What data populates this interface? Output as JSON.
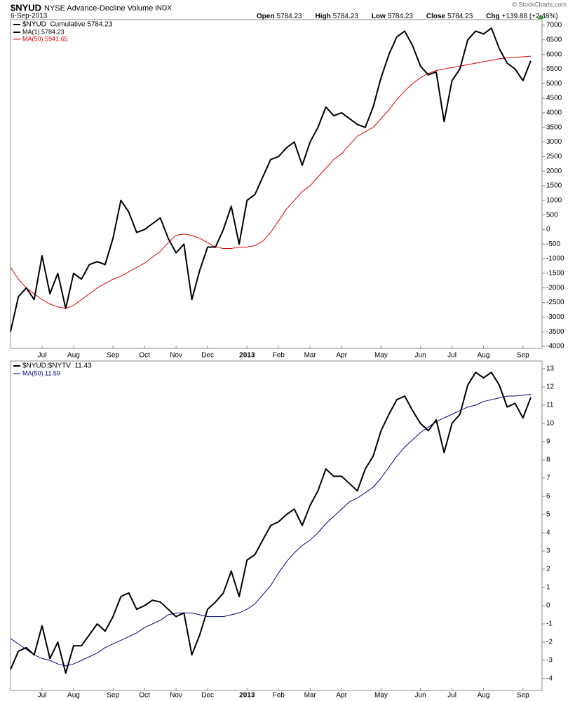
{
  "header": {
    "symbol": "$NYUD",
    "name": "NYSE Advance-Decline Volume",
    "exchange": "INDX",
    "date": "6-Sep-2013",
    "quote": [
      {
        "label": "Open",
        "value": "5784.23"
      },
      {
        "label": "High",
        "value": "5784.23"
      },
      {
        "label": "Low",
        "value": "5784.23"
      },
      {
        "label": "Close",
        "value": "5784.23"
      },
      {
        "label": "Chg",
        "value": "+139.88 (+2.48%)"
      }
    ],
    "copyright": "© StockCharts.com"
  },
  "chart_data": [
    {
      "type": "line",
      "legend_title": "$NYUD  Cumulative 5784.23",
      "categories": [
        null,
        null,
        null,
        null,
        "Jul",
        null,
        null,
        null,
        "Aug",
        null,
        null,
        null,
        null,
        "Sep",
        null,
        null,
        null,
        "Oct",
        null,
        null,
        null,
        "Nov",
        null,
        null,
        null,
        "Dec",
        null,
        null,
        null,
        null,
        "2013",
        null,
        null,
        null,
        "Feb",
        null,
        null,
        null,
        "Mar",
        null,
        null,
        null,
        "Apr",
        null,
        null,
        null,
        null,
        "May",
        null,
        null,
        null,
        null,
        "Jun",
        null,
        null,
        null,
        "Jul",
        null,
        null,
        null,
        "Aug",
        null,
        null,
        null,
        null,
        "Sep",
        null
      ],
      "series": [
        {
          "name": "MA(1) 5784.23",
          "color": "#000000",
          "values": [
            -3500,
            -2300,
            -2000,
            -2400,
            -900,
            -2200,
            -1500,
            -2700,
            -1500,
            -1700,
            -1200,
            -1100,
            -1200,
            -300,
            1000,
            600,
            -100,
            0,
            200,
            400,
            -300,
            -800,
            -500,
            -2400,
            -1400,
            -600,
            -600,
            0,
            800,
            -500,
            1000,
            1200,
            1800,
            2400,
            2500,
            2800,
            3000,
            2200,
            3000,
            3500,
            4200,
            3900,
            4000,
            3800,
            3600,
            3500,
            4200,
            5200,
            6000,
            6600,
            6800,
            6300,
            5600,
            5300,
            5400,
            3700,
            5100,
            5500,
            6500,
            6800,
            6700,
            6900,
            6200,
            5700,
            5500,
            5100,
            5784.23
          ]
        },
        {
          "name": "MA(50) 5941.65",
          "color": "#e00000",
          "values": [
            -1300,
            -1700,
            -2000,
            -2200,
            -2400,
            -2550,
            -2650,
            -2700,
            -2600,
            -2400,
            -2200,
            -2000,
            -1850,
            -1700,
            -1600,
            -1450,
            -1300,
            -1150,
            -950,
            -750,
            -450,
            -200,
            -150,
            -200,
            -300,
            -450,
            -600,
            -650,
            -650,
            -600,
            -600,
            -550,
            -400,
            -100,
            300,
            700,
            1000,
            1300,
            1500,
            1800,
            2100,
            2400,
            2600,
            2900,
            3200,
            3350,
            3500,
            3800,
            4100,
            4450,
            4750,
            5000,
            5200,
            5350,
            5450,
            5500,
            5550,
            5600,
            5650,
            5700,
            5750,
            5800,
            5850,
            5880,
            5900,
            5920,
            5941.65
          ]
        }
      ],
      "ylim": [
        -4000,
        7000
      ],
      "yticks": [
        -4000,
        -3500,
        -3000,
        -2500,
        -2000,
        -1500,
        -1000,
        -500,
        0,
        500,
        1000,
        1500,
        2000,
        2500,
        3000,
        3500,
        4000,
        4500,
        5000,
        5500,
        6000,
        6500,
        7000
      ]
    },
    {
      "type": "line",
      "legend_title": "$NYUD:$NYTV  11.43",
      "categories": [
        null,
        null,
        null,
        null,
        "Jul",
        null,
        null,
        null,
        "Aug",
        null,
        null,
        null,
        null,
        "Sep",
        null,
        null,
        null,
        "Oct",
        null,
        null,
        null,
        "Nov",
        null,
        null,
        null,
        "Dec",
        null,
        null,
        null,
        null,
        "2013",
        null,
        null,
        null,
        "Feb",
        null,
        null,
        null,
        "Mar",
        null,
        null,
        null,
        "Apr",
        null,
        null,
        null,
        null,
        "May",
        null,
        null,
        null,
        null,
        "Jun",
        null,
        null,
        null,
        "Jul",
        null,
        null,
        null,
        "Aug",
        null,
        null,
        null,
        null,
        "Sep",
        null
      ],
      "series": [
        {
          "name": "$NYUD:$NYTV",
          "color": "#000000",
          "values": [
            -3.5,
            -2.5,
            -2.3,
            -2.7,
            -1.1,
            -2.9,
            -2.0,
            -3.7,
            -2.2,
            -2.2,
            -1.6,
            -1.0,
            -1.4,
            -0.6,
            0.5,
            0.7,
            -0.2,
            0.0,
            0.3,
            0.2,
            -0.2,
            -0.6,
            -0.4,
            -2.7,
            -1.6,
            -0.2,
            0.2,
            0.7,
            1.9,
            0.5,
            2.5,
            2.8,
            3.6,
            4.4,
            4.6,
            5.0,
            5.3,
            4.4,
            5.5,
            6.3,
            7.5,
            7.1,
            7.1,
            6.7,
            6.3,
            7.5,
            8.2,
            9.6,
            10.5,
            11.3,
            11.5,
            10.7,
            10.0,
            9.6,
            10.2,
            8.4,
            10.0,
            10.5,
            12.1,
            12.8,
            12.5,
            12.8,
            12.1,
            10.9,
            11.1,
            10.3,
            11.43
          ]
        },
        {
          "name": "MA(50) 11.59",
          "color": "#000080",
          "values": [
            -1.8,
            -2.1,
            -2.4,
            -2.7,
            -2.9,
            -3.0,
            -3.2,
            -3.3,
            -3.2,
            -3.0,
            -2.8,
            -2.6,
            -2.3,
            -2.1,
            -1.9,
            -1.7,
            -1.5,
            -1.2,
            -1.0,
            -0.8,
            -0.5,
            -0.4,
            -0.4,
            -0.4,
            -0.5,
            -0.6,
            -0.6,
            -0.6,
            -0.5,
            -0.4,
            -0.2,
            0.1,
            0.6,
            1.1,
            1.8,
            2.4,
            2.9,
            3.3,
            3.6,
            4.0,
            4.5,
            4.9,
            5.3,
            5.7,
            5.9,
            6.2,
            6.5,
            7.0,
            7.6,
            8.2,
            8.7,
            9.1,
            9.5,
            9.8,
            10.1,
            10.3,
            10.5,
            10.7,
            10.9,
            11.0,
            11.2,
            11.3,
            11.4,
            11.5,
            11.5,
            11.55,
            11.59
          ]
        }
      ],
      "ylim": [
        -4,
        13
      ],
      "yticks": [
        -4,
        -3,
        -2,
        -1,
        0,
        1,
        2,
        3,
        4,
        5,
        6,
        7,
        8,
        9,
        10,
        11,
        12,
        13
      ]
    }
  ]
}
